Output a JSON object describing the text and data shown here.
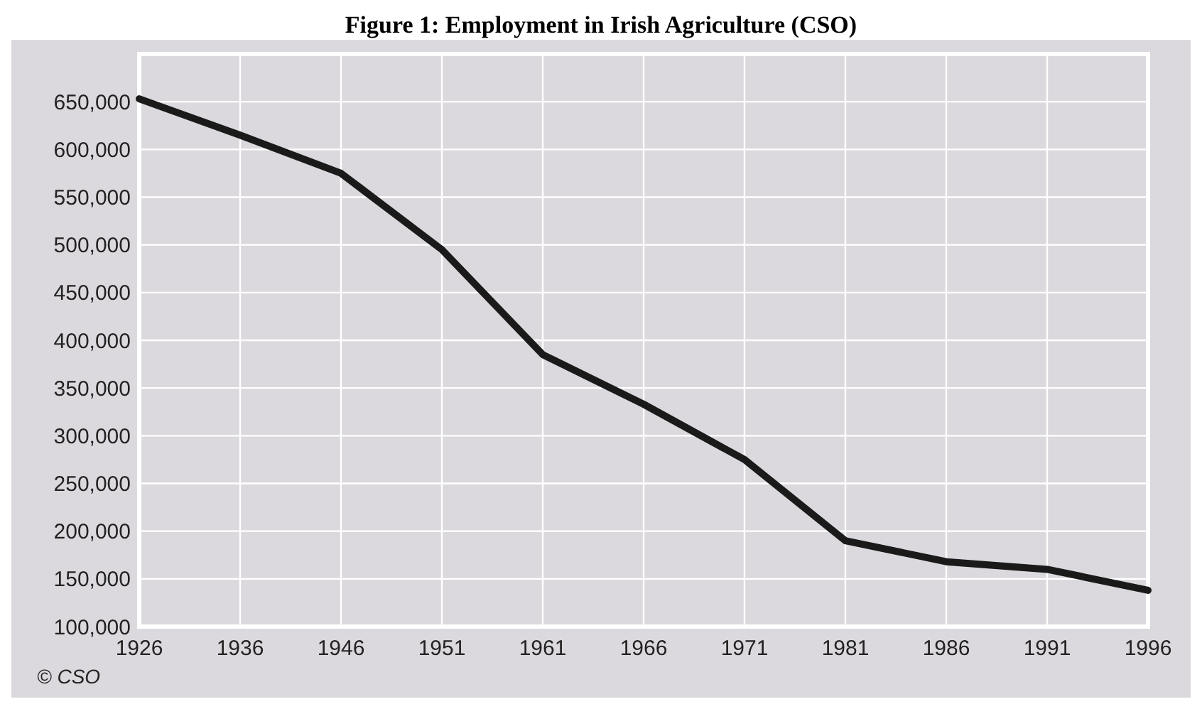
{
  "chart_data": {
    "type": "line",
    "title": "Figure 1: Employment in Irish Agriculture (CSO)",
    "categories": [
      "1926",
      "1936",
      "1946",
      "1951",
      "1961",
      "1966",
      "1971",
      "1981",
      "1986",
      "1991",
      "1996"
    ],
    "series": [
      {
        "color": "#1a1a1a",
        "values": [
          653000,
          615000,
          575000,
          495000,
          385000,
          333000,
          275000,
          190000,
          168000,
          160000,
          138000
        ]
      }
    ],
    "ylim": [
      100000,
      700000
    ],
    "yticks": [
      {
        "value": 100000,
        "label": "100,000"
      },
      {
        "value": 150000,
        "label": "150,000"
      },
      {
        "value": 200000,
        "label": "200,000"
      },
      {
        "value": 250000,
        "label": "250,000"
      },
      {
        "value": 300000,
        "label": "300,000"
      },
      {
        "value": 350000,
        "label": "350,000"
      },
      {
        "value": 400000,
        "label": "400,000"
      },
      {
        "value": 450000,
        "label": "450,000"
      },
      {
        "value": 500000,
        "label": "500,000"
      },
      {
        "value": 550000,
        "label": "550,000"
      },
      {
        "value": 600000,
        "label": "600,000"
      },
      {
        "value": 650000,
        "label": "650,000"
      }
    ],
    "grid": true,
    "annotations": [
      "© CSO"
    ]
  }
}
